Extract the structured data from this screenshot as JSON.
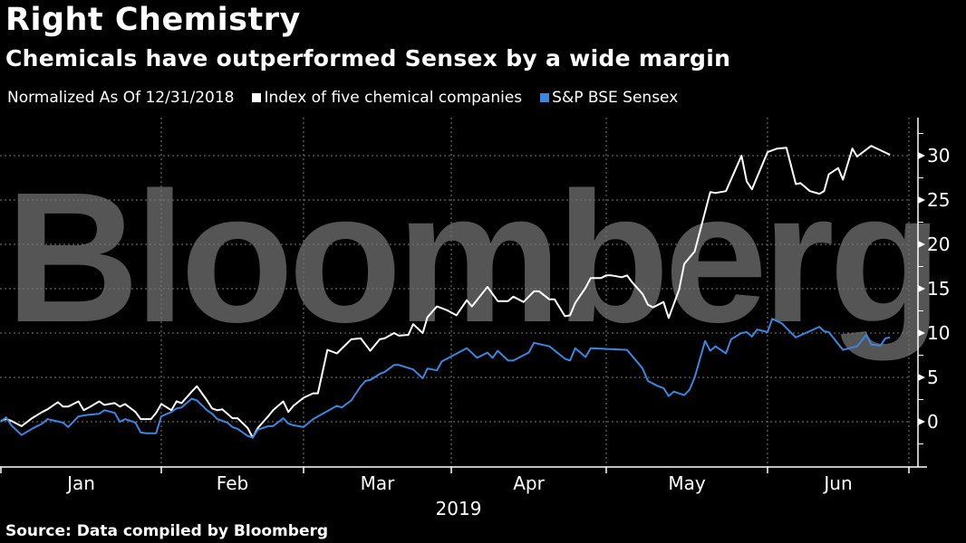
{
  "title": "Right Chemistry",
  "subtitle": "Chemicals have outperformed Sensex by a wide margin",
  "source": "Source: Data compiled by Bloomberg",
  "watermark": "Bloomberg",
  "colors": {
    "background": "#000000",
    "white_series": "#ffffff",
    "blue_series": "#3a86e0",
    "watermark": "#555555",
    "grid": "#777777"
  },
  "chart_data": {
    "type": "line",
    "title": "Right Chemistry",
    "subtitle": "Chemicals have outperformed Sensex by a wide margin",
    "legend_note": "Normalized As Of 12/31/2018",
    "legend_position": "top-left",
    "grid": true,
    "xlabel": "2019",
    "x_ticks": [
      "Jan",
      "Feb",
      "Mar",
      "Apr",
      "May",
      "Jun"
    ],
    "y_ticks": [
      "0",
      "5",
      "10",
      "15",
      "20",
      "25",
      "30"
    ],
    "y_axis_side": "right",
    "ylim": [
      -5,
      34
    ],
    "xlim": [
      "2019-01-01",
      "2019-07-01"
    ],
    "series": [
      {
        "name": "Index of five chemical companies",
        "color": "#ffffff",
        "points": [
          [
            "2019-01-01",
            0.1
          ],
          [
            "2019-01-02",
            0.3
          ],
          [
            "2019-01-03",
            0.1
          ],
          [
            "2019-01-05",
            -0.5
          ],
          [
            "2019-01-07",
            0.4
          ],
          [
            "2019-01-09",
            1.1
          ],
          [
            "2019-01-10",
            1.4
          ],
          [
            "2019-01-12",
            2.2
          ],
          [
            "2019-01-13",
            1.7
          ],
          [
            "2019-01-14",
            1.7
          ],
          [
            "2019-01-16",
            2.3
          ],
          [
            "2019-01-17",
            1.3
          ],
          [
            "2019-01-18",
            1.6
          ],
          [
            "2019-01-20",
            2.3
          ],
          [
            "2019-01-21",
            1.9
          ],
          [
            "2019-01-23",
            2.1
          ],
          [
            "2019-01-24",
            1.7
          ],
          [
            "2019-01-25",
            2.0
          ],
          [
            "2019-01-27",
            1.1
          ],
          [
            "2019-01-28",
            0.3
          ],
          [
            "2019-01-30",
            0.3
          ],
          [
            "2019-01-31",
            1.0
          ],
          [
            "2019-02-01",
            2.0
          ],
          [
            "2019-02-03",
            1.3
          ],
          [
            "2019-02-04",
            2.3
          ],
          [
            "2019-02-05",
            2.1
          ],
          [
            "2019-02-07",
            3.4
          ],
          [
            "2019-02-08",
            4.0
          ],
          [
            "2019-02-10",
            2.4
          ],
          [
            "2019-02-11",
            1.5
          ],
          [
            "2019-02-12",
            1.3
          ],
          [
            "2019-02-13",
            1.4
          ],
          [
            "2019-02-15",
            0.4
          ],
          [
            "2019-02-16",
            0.4
          ],
          [
            "2019-02-18",
            -0.7
          ],
          [
            "2019-02-19",
            -1.8
          ],
          [
            "2019-02-20",
            -0.7
          ],
          [
            "2019-02-22",
            0.6
          ],
          [
            "2019-02-23",
            1.3
          ],
          [
            "2019-02-25",
            2.3
          ],
          [
            "2019-02-26",
            1.1
          ],
          [
            "2019-02-27",
            1.8
          ],
          [
            "2019-03-01",
            2.7
          ],
          [
            "2019-03-03",
            3.2
          ],
          [
            "2019-03-04",
            3.2
          ],
          [
            "2019-03-06",
            8.1
          ],
          [
            "2019-03-08",
            7.7
          ],
          [
            "2019-03-11",
            9.3
          ],
          [
            "2019-03-13",
            9.4
          ],
          [
            "2019-03-15",
            8.0
          ],
          [
            "2019-03-17",
            9.3
          ],
          [
            "2019-03-18",
            9.4
          ],
          [
            "2019-03-20",
            10.0
          ],
          [
            "2019-03-21",
            9.7
          ],
          [
            "2019-03-23",
            9.8
          ],
          [
            "2019-03-24",
            11.0
          ],
          [
            "2019-03-26",
            10.0
          ],
          [
            "2019-03-27",
            11.8
          ],
          [
            "2019-03-29",
            13.0
          ],
          [
            "2019-03-31",
            12.6
          ],
          [
            "2019-04-02",
            12.0
          ],
          [
            "2019-04-04",
            13.7
          ],
          [
            "2019-04-05",
            13.0
          ],
          [
            "2019-04-08",
            15.2
          ],
          [
            "2019-04-10",
            13.6
          ],
          [
            "2019-04-12",
            13.6
          ],
          [
            "2019-04-13",
            14.1
          ],
          [
            "2019-04-15",
            13.5
          ],
          [
            "2019-04-17",
            14.7
          ],
          [
            "2019-04-18",
            14.7
          ],
          [
            "2019-04-20",
            13.8
          ],
          [
            "2019-04-21",
            13.8
          ],
          [
            "2019-04-23",
            11.9
          ],
          [
            "2019-04-24",
            12.0
          ],
          [
            "2019-04-25",
            13.4
          ],
          [
            "2019-04-27",
            15.1
          ],
          [
            "2019-04-28",
            16.2
          ],
          [
            "2019-04-30",
            16.2
          ],
          [
            "2019-05-01",
            16.5
          ],
          [
            "2019-05-02",
            16.5
          ],
          [
            "2019-05-04",
            16.3
          ],
          [
            "2019-05-05",
            16.5
          ],
          [
            "2019-05-06",
            15.7
          ],
          [
            "2019-05-08",
            14.4
          ],
          [
            "2019-05-09",
            13.2
          ],
          [
            "2019-05-10",
            12.9
          ],
          [
            "2019-05-12",
            13.5
          ],
          [
            "2019-05-13",
            11.7
          ],
          [
            "2019-05-15",
            14.9
          ],
          [
            "2019-05-16",
            17.8
          ],
          [
            "2019-05-18",
            19.2
          ],
          [
            "2019-05-21",
            25.9
          ],
          [
            "2019-05-22",
            25.8
          ],
          [
            "2019-05-24",
            26.0
          ],
          [
            "2019-05-27",
            30.0
          ],
          [
            "2019-05-28",
            27.1
          ],
          [
            "2019-05-29",
            26.2
          ],
          [
            "2019-06-01",
            30.4
          ],
          [
            "2019-06-03",
            30.8
          ],
          [
            "2019-06-05",
            30.9
          ],
          [
            "2019-06-07",
            26.8
          ],
          [
            "2019-06-08",
            26.9
          ],
          [
            "2019-06-10",
            26.0
          ],
          [
            "2019-06-12",
            25.7
          ],
          [
            "2019-06-13",
            26.0
          ],
          [
            "2019-06-14",
            27.9
          ],
          [
            "2019-06-16",
            28.6
          ],
          [
            "2019-06-17",
            27.3
          ],
          [
            "2019-06-19",
            30.8
          ],
          [
            "2019-06-20",
            29.9
          ],
          [
            "2019-06-23",
            31.1
          ],
          [
            "2019-06-25",
            30.6
          ],
          [
            "2019-06-27",
            30.1
          ]
        ]
      },
      {
        "name": "S&P BSE Sensex",
        "color": "#3a86e0",
        "points": [
          [
            "2019-01-01",
            0.0
          ],
          [
            "2019-01-02",
            0.5
          ],
          [
            "2019-01-03",
            -0.4
          ],
          [
            "2019-01-05",
            -1.5
          ],
          [
            "2019-01-07",
            -0.8
          ],
          [
            "2019-01-09",
            -0.2
          ],
          [
            "2019-01-10",
            0.3
          ],
          [
            "2019-01-13",
            -0.1
          ],
          [
            "2019-01-14",
            -0.6
          ],
          [
            "2019-01-16",
            0.6
          ],
          [
            "2019-01-18",
            0.8
          ],
          [
            "2019-01-20",
            0.9
          ],
          [
            "2019-01-21",
            1.3
          ],
          [
            "2019-01-23",
            1.0
          ],
          [
            "2019-01-24",
            0.0
          ],
          [
            "2019-01-25",
            0.3
          ],
          [
            "2019-01-27",
            -0.1
          ],
          [
            "2019-01-28",
            -1.2
          ],
          [
            "2019-01-29",
            -1.3
          ],
          [
            "2019-01-31",
            -1.3
          ],
          [
            "2019-02-01",
            0.6
          ],
          [
            "2019-02-03",
            1.1
          ],
          [
            "2019-02-04",
            1.5
          ],
          [
            "2019-02-05",
            1.6
          ],
          [
            "2019-02-07",
            2.6
          ],
          [
            "2019-02-08",
            2.4
          ],
          [
            "2019-02-10",
            1.3
          ],
          [
            "2019-02-11",
            0.9
          ],
          [
            "2019-02-12",
            0.3
          ],
          [
            "2019-02-14",
            -0.1
          ],
          [
            "2019-02-15",
            -0.6
          ],
          [
            "2019-02-16",
            -0.8
          ],
          [
            "2019-02-18",
            -1.6
          ],
          [
            "2019-02-19",
            -1.8
          ],
          [
            "2019-02-20",
            -0.9
          ],
          [
            "2019-02-22",
            -0.5
          ],
          [
            "2019-02-23",
            -0.5
          ],
          [
            "2019-02-25",
            0.4
          ],
          [
            "2019-02-26",
            -0.2
          ],
          [
            "2019-02-27",
            -0.4
          ],
          [
            "2019-03-01",
            -0.6
          ],
          [
            "2019-03-03",
            0.3
          ],
          [
            "2019-03-06",
            1.2
          ],
          [
            "2019-03-08",
            1.8
          ],
          [
            "2019-03-09",
            1.6
          ],
          [
            "2019-03-11",
            2.4
          ],
          [
            "2019-03-13",
            4.0
          ],
          [
            "2019-03-14",
            4.6
          ],
          [
            "2019-03-15",
            4.7
          ],
          [
            "2019-03-17",
            5.4
          ],
          [
            "2019-03-18",
            5.6
          ],
          [
            "2019-03-20",
            6.4
          ],
          [
            "2019-03-21",
            6.4
          ],
          [
            "2019-03-24",
            5.9
          ],
          [
            "2019-03-26",
            4.9
          ],
          [
            "2019-03-27",
            6.0
          ],
          [
            "2019-03-29",
            5.8
          ],
          [
            "2019-03-30",
            6.8
          ],
          [
            "2019-04-04",
            8.3
          ],
          [
            "2019-04-06",
            7.2
          ],
          [
            "2019-04-08",
            7.8
          ],
          [
            "2019-04-09",
            7.2
          ],
          [
            "2019-04-10",
            8.0
          ],
          [
            "2019-04-12",
            6.9
          ],
          [
            "2019-04-13",
            6.9
          ],
          [
            "2019-04-16",
            7.8
          ],
          [
            "2019-04-17",
            8.9
          ],
          [
            "2019-04-20",
            8.5
          ],
          [
            "2019-04-23",
            7.1
          ],
          [
            "2019-04-24",
            6.9
          ],
          [
            "2019-04-25",
            8.3
          ],
          [
            "2019-04-27",
            7.3
          ],
          [
            "2019-04-28",
            8.3
          ],
          [
            "2019-05-05",
            8.1
          ],
          [
            "2019-05-08",
            6.0
          ],
          [
            "2019-05-09",
            4.6
          ],
          [
            "2019-05-11",
            4.0
          ],
          [
            "2019-05-12",
            3.8
          ],
          [
            "2019-05-13",
            2.9
          ],
          [
            "2019-05-14",
            3.4
          ],
          [
            "2019-05-16",
            3.0
          ],
          [
            "2019-05-17",
            3.6
          ],
          [
            "2019-05-18",
            5.0
          ],
          [
            "2019-05-20",
            9.1
          ],
          [
            "2019-05-21",
            8.0
          ],
          [
            "2019-05-22",
            8.5
          ],
          [
            "2019-05-24",
            7.7
          ],
          [
            "2019-05-25",
            9.3
          ],
          [
            "2019-05-27",
            10.0
          ],
          [
            "2019-05-28",
            10.1
          ],
          [
            "2019-05-29",
            9.6
          ],
          [
            "2019-05-30",
            10.4
          ],
          [
            "2019-06-01",
            10.1
          ],
          [
            "2019-06-02",
            11.6
          ],
          [
            "2019-06-04",
            11.1
          ],
          [
            "2019-06-07",
            9.5
          ],
          [
            "2019-06-12",
            10.7
          ],
          [
            "2019-06-13",
            10.2
          ],
          [
            "2019-06-14",
            10.1
          ],
          [
            "2019-06-17",
            8.1
          ],
          [
            "2019-06-20",
            8.5
          ],
          [
            "2019-06-22",
            9.8
          ],
          [
            "2019-06-23",
            8.7
          ],
          [
            "2019-06-25",
            8.6
          ],
          [
            "2019-06-26",
            9.4
          ],
          [
            "2019-06-27",
            9.5
          ]
        ]
      }
    ]
  }
}
